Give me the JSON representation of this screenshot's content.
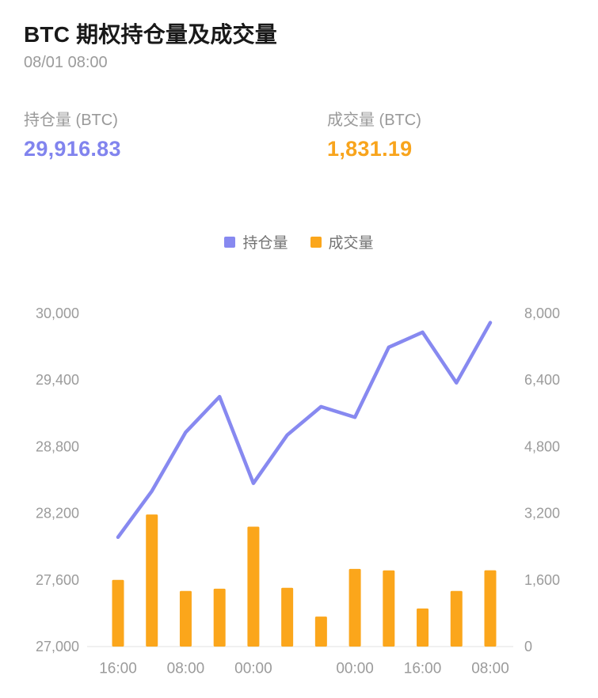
{
  "header": {
    "title": "BTC 期权持仓量及成交量",
    "timestamp": "08/01 08:00"
  },
  "stats": {
    "open_interest": {
      "label": "持仓量 (BTC)",
      "value": "29,916.83"
    },
    "volume": {
      "label": "成交量 (BTC)",
      "value": "1,831.19"
    }
  },
  "legend": [
    {
      "label": "持仓量",
      "color": "#8789f0"
    },
    {
      "label": "成交量",
      "color": "#fba61b"
    }
  ],
  "colors": {
    "purple": "#8184ee",
    "orange": "#f8a41c",
    "title_text": "#191919",
    "muted_text": "#999999",
    "axis_text": "#9b9b9b",
    "baseline": "#ececec"
  },
  "chart_data": {
    "type": "combo",
    "title": "BTC 期权持仓量及成交量",
    "grid": false,
    "legend_position": "top-center",
    "x_interval_hours": 8,
    "x_tick_labels": [
      {
        "index": 0,
        "label": "16:00"
      },
      {
        "index": 2,
        "label": "08:00"
      },
      {
        "index": 4,
        "label": "00:00"
      },
      {
        "index": 7,
        "label": "00:00"
      },
      {
        "index": 9,
        "label": "16:00"
      },
      {
        "index": 11,
        "label": "08:00"
      }
    ],
    "left_axis": {
      "name": "持仓量 (BTC)",
      "min": 27000,
      "max": 30000,
      "tick_step": 600,
      "tick_labels": [
        "27,000",
        "27,600",
        "28,200",
        "28,800",
        "29,400",
        "30,000"
      ]
    },
    "right_axis": {
      "name": "成交量 (BTC)",
      "min": 0,
      "max": 8000,
      "tick_step": 1600,
      "tick_labels": [
        "0",
        "1,600",
        "3,200",
        "4,800",
        "6,400",
        "8,000"
      ]
    },
    "series": [
      {
        "name": "持仓量",
        "type": "line",
        "axis": "left",
        "color": "#8789f0",
        "values": [
          27985,
          28400,
          28930,
          29250,
          28470,
          28905,
          29160,
          29065,
          29695,
          29830,
          29375,
          29916.83
        ]
      },
      {
        "name": "成交量",
        "type": "bar",
        "axis": "right",
        "color": "#fba61b",
        "values": [
          1600,
          3170,
          1335,
          1390,
          2880,
          1410,
          720,
          1865,
          1830,
          915,
          1335,
          1831.19
        ]
      }
    ]
  }
}
